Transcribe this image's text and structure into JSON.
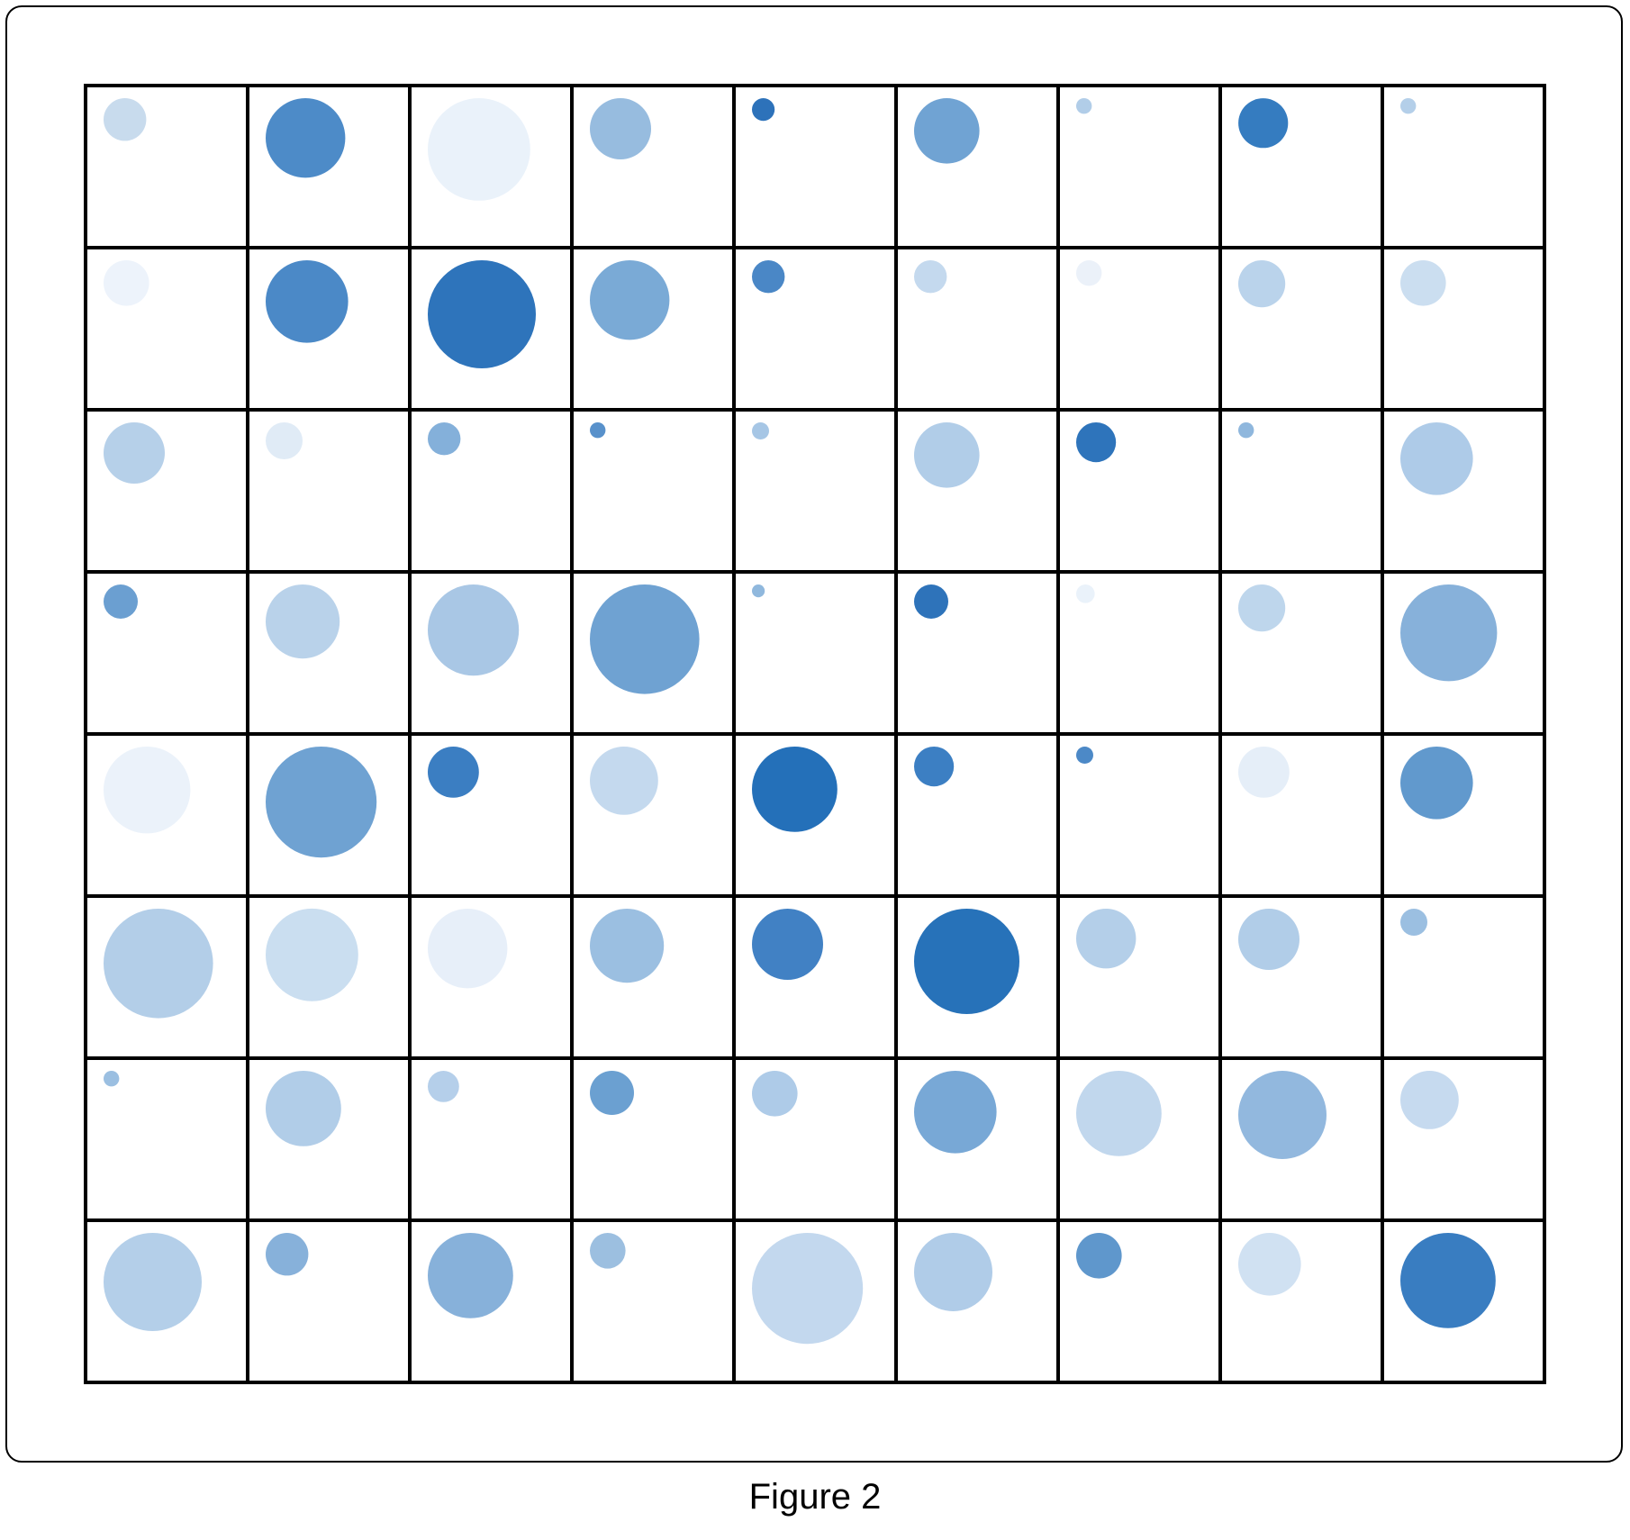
{
  "caption": "Figure 2",
  "chart_data": {
    "type": "scatter",
    "subtype": "circle-grid",
    "rows": 8,
    "cols": 9,
    "grid": true,
    "encoding": {
      "size": "value",
      "color": "value",
      "color_scale": "blues"
    },
    "values": [
      [
        0.3,
        0.56,
        0.72,
        0.43,
        0.16,
        0.46,
        0.11,
        0.35,
        0.11
      ],
      [
        0.32,
        0.58,
        0.76,
        0.56,
        0.23,
        0.23,
        0.18,
        0.33,
        0.32
      ],
      [
        0.43,
        0.26,
        0.23,
        0.11,
        0.12,
        0.46,
        0.28,
        0.11,
        0.51
      ],
      [
        0.24,
        0.52,
        0.64,
        0.77,
        0.09,
        0.24,
        0.13,
        0.33,
        0.68
      ],
      [
        0.61,
        0.78,
        0.36,
        0.48,
        0.6,
        0.28,
        0.12,
        0.36,
        0.51
      ],
      [
        0.77,
        0.65,
        0.56,
        0.52,
        0.5,
        0.74,
        0.42,
        0.43,
        0.19
      ],
      [
        0.11,
        0.53,
        0.22,
        0.31,
        0.32,
        0.58,
        0.6,
        0.62,
        0.41
      ],
      [
        0.69,
        0.3,
        0.6,
        0.25,
        0.78,
        0.55,
        0.32,
        0.44,
        0.67
      ]
    ],
    "colors": [
      [
        "#c8dbed",
        "#4d8bc8",
        "#eaf2fa",
        "#97bcdf",
        "#2d72ba",
        "#70a3d3",
        "#b1cde8",
        "#357cc0",
        "#b4cfe9"
      ],
      [
        "#edf3fb",
        "#4b89c7",
        "#2e74bb",
        "#7aaad6",
        "#4a87c6",
        "#c4d9ee",
        "#ebf1f9",
        "#bad3eb",
        "#cbdef0"
      ],
      [
        "#b6d0e9",
        "#e0ebf6",
        "#84b0da",
        "#5891cb",
        "#a6c6e5",
        "#b1cde8",
        "#2e74bb",
        "#8fb7dd",
        "#aecbe8"
      ],
      [
        "#6b9fd1",
        "#b9d2ea",
        "#a9c7e5",
        "#6fa2d2",
        "#90b8dd",
        "#2e73ba",
        "#eaf2fa",
        "#bed6ec",
        "#87b1da"
      ],
      [
        "#ebf2fa",
        "#6fa2d2",
        "#3b7ec2",
        "#c4d9ee",
        "#2470b9",
        "#3c7fc3",
        "#4c89c7",
        "#e5eef8",
        "#6199cd"
      ],
      [
        "#b3cee8",
        "#cadef0",
        "#e7eff9",
        "#9bbfe1",
        "#4181c4",
        "#2772b9",
        "#b4cfe9",
        "#b1cde8",
        "#9bbfe1"
      ],
      [
        "#9bbfe1",
        "#b1cde8",
        "#b5cfea",
        "#6ba0d1",
        "#aecbe8",
        "#78a8d6",
        "#c1d7ed",
        "#92b8de",
        "#c6daef"
      ],
      [
        "#b4cfe9",
        "#87b1da",
        "#87b1da",
        "#9cbfe0",
        "#c3d8ee",
        "#b0cce8",
        "#5f97cc",
        "#d0e1f2",
        "#397dc1"
      ]
    ]
  }
}
